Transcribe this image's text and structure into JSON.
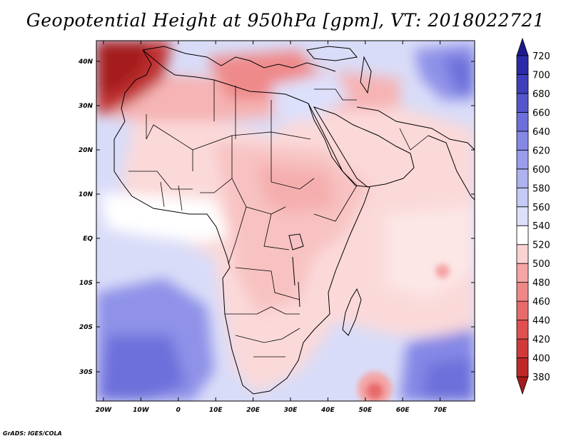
{
  "title": "Geopotential Height at 950hPa [gpm], VT: 2018022721",
  "credit": "GrADS: IGES/COLA",
  "map": {
    "variable": "Geopotential Height",
    "level": "950hPa",
    "units": "gpm",
    "valid_time": "2018022721",
    "lat_ticks": [
      "40N",
      "30N",
      "20N",
      "10N",
      "EQ",
      "10S",
      "20S",
      "30S"
    ],
    "lon_ticks": [
      "20W",
      "10W",
      "0",
      "10E",
      "20E",
      "30E",
      "40E",
      "50E",
      "60E",
      "70E"
    ]
  },
  "colorbar": {
    "levels": [
      "380",
      "400",
      "420",
      "440",
      "460",
      "480",
      "500",
      "520",
      "540",
      "560",
      "580",
      "600",
      "620",
      "640",
      "660",
      "680",
      "700",
      "720"
    ],
    "colors": [
      "#a51c1c",
      "#c02828",
      "#d23a3a",
      "#e05050",
      "#e86a6a",
      "#ef8787",
      "#f5a5a5",
      "#fbd2d2",
      "#ffffff",
      "#dde0fb",
      "#c6caf6",
      "#afb2f0",
      "#9a9ced",
      "#8588e5",
      "#6d6fda",
      "#5556cc",
      "#3f3fbb",
      "#2b2aa8",
      "#1b1a8f"
    ]
  }
}
